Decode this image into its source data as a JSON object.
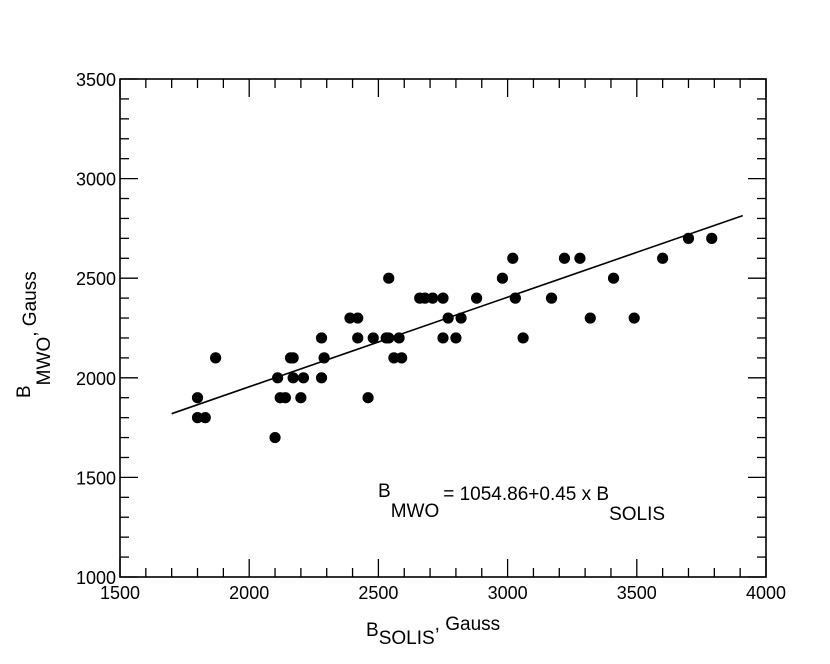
{
  "chart_data": {
    "type": "scatter",
    "xlim": [
      1500,
      4000
    ],
    "ylim": [
      1000,
      3500
    ],
    "x_ticks": [
      1500,
      2000,
      2500,
      3000,
      3500,
      4000
    ],
    "y_ticks": [
      1000,
      1500,
      2000,
      2500,
      3000,
      3500
    ],
    "x_minor_step": 100,
    "y_minor_step": 100,
    "grid": false,
    "xlabel": {
      "main": "B",
      "sub": "SOLIS",
      "rest": ", Gauss"
    },
    "ylabel": {
      "main": "B",
      "sub": "MWO",
      "rest": ", Gauss"
    },
    "equation": {
      "lhs_main": "B",
      "lhs_sub": "MWO",
      "rhs": "= 1054.86+0.45 x B",
      "rhs_sub": "SOLIS"
    },
    "fit": {
      "intercept": 1054.86,
      "slope": 0.45,
      "x_range": [
        1700,
        3910
      ]
    },
    "points": [
      {
        "x": 1800,
        "y": 1900
      },
      {
        "x": 1800,
        "y": 1800
      },
      {
        "x": 1830,
        "y": 1800
      },
      {
        "x": 1870,
        "y": 2100
      },
      {
        "x": 2100,
        "y": 1700
      },
      {
        "x": 2110,
        "y": 2000
      },
      {
        "x": 2120,
        "y": 1900
      },
      {
        "x": 2140,
        "y": 1900
      },
      {
        "x": 2160,
        "y": 2100
      },
      {
        "x": 2170,
        "y": 2100
      },
      {
        "x": 2170,
        "y": 2000
      },
      {
        "x": 2200,
        "y": 1900
      },
      {
        "x": 2210,
        "y": 2000
      },
      {
        "x": 2280,
        "y": 2000
      },
      {
        "x": 2280,
        "y": 2200
      },
      {
        "x": 2290,
        "y": 2100
      },
      {
        "x": 2390,
        "y": 2300
      },
      {
        "x": 2420,
        "y": 2300
      },
      {
        "x": 2420,
        "y": 2200
      },
      {
        "x": 2460,
        "y": 1900
      },
      {
        "x": 2480,
        "y": 2200
      },
      {
        "x": 2530,
        "y": 2200
      },
      {
        "x": 2540,
        "y": 2500
      },
      {
        "x": 2540,
        "y": 2200
      },
      {
        "x": 2560,
        "y": 2100
      },
      {
        "x": 2580,
        "y": 2200
      },
      {
        "x": 2590,
        "y": 2100
      },
      {
        "x": 2660,
        "y": 2400
      },
      {
        "x": 2680,
        "y": 2400
      },
      {
        "x": 2710,
        "y": 2400
      },
      {
        "x": 2750,
        "y": 2400
      },
      {
        "x": 2750,
        "y": 2200
      },
      {
        "x": 2770,
        "y": 2300
      },
      {
        "x": 2800,
        "y": 2200
      },
      {
        "x": 2820,
        "y": 2300
      },
      {
        "x": 2880,
        "y": 2400
      },
      {
        "x": 2980,
        "y": 2500
      },
      {
        "x": 3020,
        "y": 2600
      },
      {
        "x": 3030,
        "y": 2400
      },
      {
        "x": 3060,
        "y": 2200
      },
      {
        "x": 3170,
        "y": 2400
      },
      {
        "x": 3220,
        "y": 2600
      },
      {
        "x": 3280,
        "y": 2600
      },
      {
        "x": 3320,
        "y": 2300
      },
      {
        "x": 3410,
        "y": 2500
      },
      {
        "x": 3490,
        "y": 2300
      },
      {
        "x": 3600,
        "y": 2600
      },
      {
        "x": 3700,
        "y": 2700
      },
      {
        "x": 3790,
        "y": 2700
      }
    ]
  }
}
